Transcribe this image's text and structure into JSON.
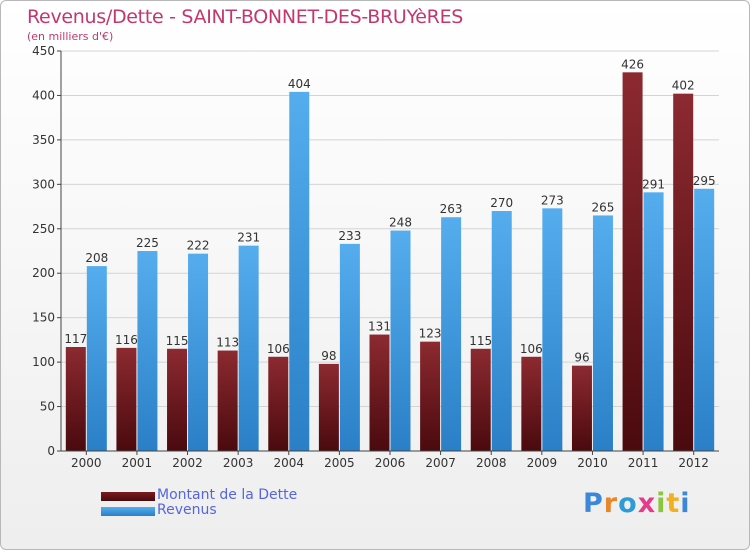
{
  "chart_data": {
    "type": "bar",
    "title": "Revenus/Dette - SAINT-BONNET-DES-BRUYèRES",
    "subtitle": "(en milliers d'€)",
    "categories": [
      "2000",
      "2001",
      "2002",
      "2003",
      "2004",
      "2005",
      "2006",
      "2007",
      "2008",
      "2009",
      "2010",
      "2011",
      "2012"
    ],
    "series": [
      {
        "name": "Montant de la Dette",
        "color": "#7a1a1f",
        "values": [
          117,
          116,
          115,
          113,
          106,
          98,
          131,
          123,
          115,
          106,
          96,
          426,
          402
        ]
      },
      {
        "name": "Revenus",
        "color": "#3e9be3",
        "values": [
          208,
          225,
          222,
          231,
          404,
          233,
          248,
          263,
          270,
          273,
          265,
          291,
          295
        ]
      }
    ],
    "ylim": [
      0,
      450
    ],
    "yticks": [
      0,
      50,
      100,
      150,
      200,
      250,
      300,
      350,
      400,
      450
    ],
    "grid": true,
    "legend": "bottom-left"
  },
  "branding": {
    "logo_text": "Proxiti"
  }
}
